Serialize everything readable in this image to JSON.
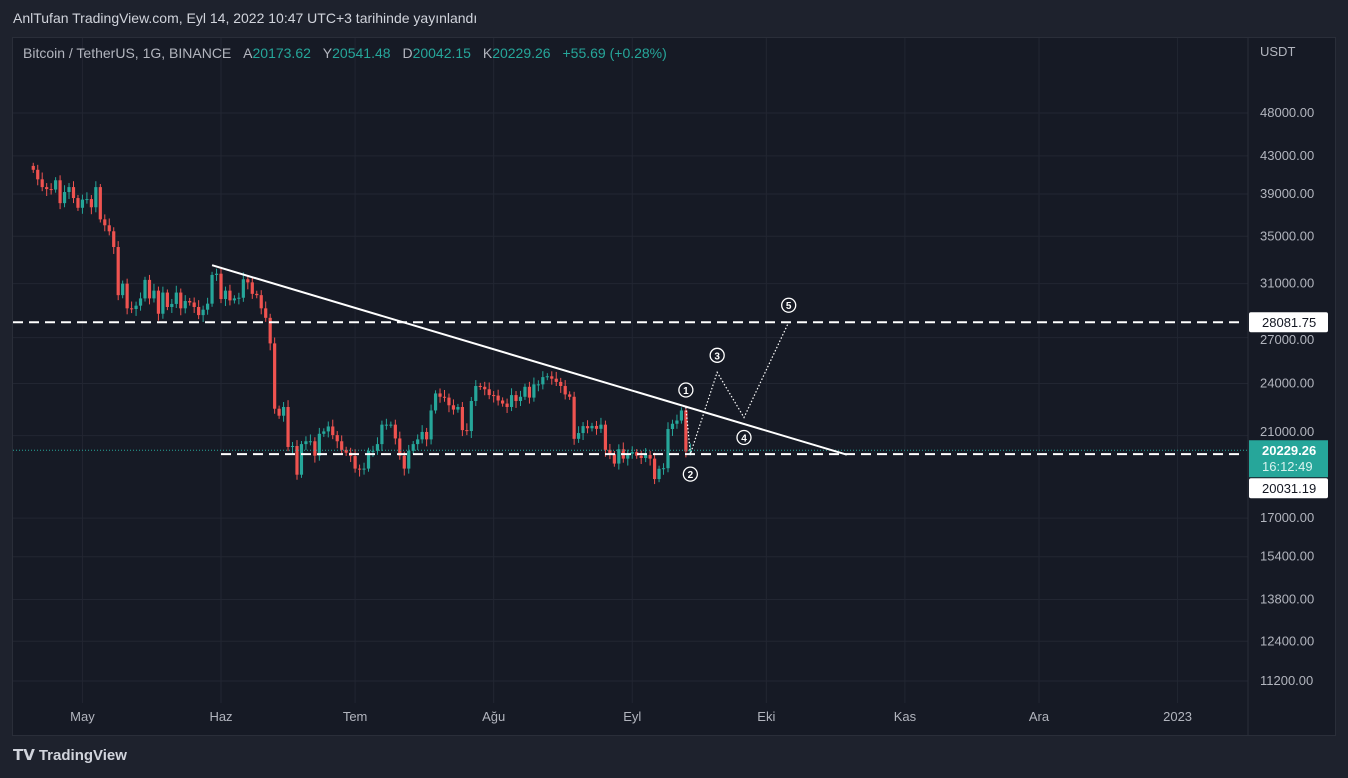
{
  "header": {
    "title": "AnlTufan TradingView.com, Eyl 14, 2022 10:47 UTC+3 tarihinde yayınlandı"
  },
  "legend": {
    "symbol": "Bitcoin / TetherUS, 1G, BINANCE",
    "open_label": "A",
    "open": "20173.62",
    "high_label": "Y",
    "high": "20541.48",
    "low_label": "D",
    "low": "20042.15",
    "close_label": "K",
    "close": "20229.26",
    "change": "+55.69 (+0.28%)"
  },
  "footer": {
    "brand": "TradingView"
  },
  "colors": {
    "up": "#26a69a",
    "down": "#ef5350",
    "bg": "#161a25"
  },
  "chart_data": {
    "type": "candlestick",
    "title": "Bitcoin / TetherUS, 1G, BINANCE",
    "currency": "USDT",
    "scale": "log",
    "start_date": "2022-04-20",
    "closes": [
      41500,
      40500,
      39700,
      39500,
      39450,
      40400,
      38100,
      39200,
      39700,
      38600,
      37650,
      38450,
      38500,
      37700,
      39700,
      36550,
      36000,
      35450,
      34050,
      30100,
      31000,
      29100,
      29050,
      29300,
      29850,
      31300,
      29850,
      30450,
      28700,
      30300,
      29200,
      29430,
      30300,
      29100,
      29650,
      29540,
      29200,
      28600,
      29000,
      29450,
      31700,
      31800,
      29800,
      30450,
      29700,
      29850,
      29900,
      31350,
      31100,
      30200,
      30100,
      29100,
      28400,
      26600,
      22500,
      22100,
      22600,
      20400,
      20450,
      19000,
      20550,
      20700,
      20700,
      19950,
      21100,
      21230,
      21500,
      21030,
      20700,
      20250,
      20100,
      19930,
      19300,
      19250,
      19300,
      20200,
      20200,
      20550,
      21600,
      21600,
      21600,
      20850,
      19950,
      19300,
      20200,
      20550,
      20800,
      21200,
      20800,
      22400,
      23400,
      23200,
      23150,
      22700,
      22450,
      22600,
      21300,
      21250,
      22950,
      23850,
      23800,
      23650,
      23300,
      23270,
      22980,
      22800,
      22600,
      23300,
      22950,
      23200,
      23800,
      23150,
      23950,
      23950,
      24400,
      24450,
      24300,
      24100,
      23850,
      23340,
      23200,
      20830,
      21140,
      21520,
      21400,
      21530,
      21370,
      21600,
      20250,
      20030,
      19550,
      20280,
      19800,
      20050,
      20130,
      19950,
      19830,
      19990,
      19800,
      18790,
      19290,
      19320,
      21360,
      21650,
      21830,
      22400,
      20170,
      20229.26
    ],
    "price_ticks": [
      "48000.00",
      "43000.00",
      "39000.00",
      "35000.00",
      "31000.00",
      "27000.00",
      "24000.00",
      "21000.00",
      "17000.00",
      "15400.00",
      "13800.00",
      "12400.00",
      "11200.00"
    ],
    "time_ticks": [
      {
        "label": "May",
        "date": "2022-05-01"
      },
      {
        "label": "Haz",
        "date": "2022-06-01"
      },
      {
        "label": "Tem",
        "date": "2022-07-01"
      },
      {
        "label": "Ağu",
        "date": "2022-08-01"
      },
      {
        "label": "Eyl",
        "date": "2022-09-01"
      },
      {
        "label": "Eki",
        "date": "2022-10-01"
      },
      {
        "label": "Kas",
        "date": "2022-11-01"
      },
      {
        "label": "Ara",
        "date": "2022-12-01"
      },
      {
        "label": "2023",
        "date": "2023-01-01"
      }
    ],
    "trendline": {
      "from": {
        "date": "2022-05-30",
        "price": 32500
      },
      "to": {
        "date": "2022-10-19",
        "price": 20000
      }
    },
    "levels": [
      {
        "price": 28081.75,
        "label": "28081.75"
      },
      {
        "price": 20031.19,
        "label": "20031.19"
      }
    ],
    "last_price": {
      "label": "20229.26",
      "countdown": "16:12:49",
      "price": 20229.26
    },
    "wave_path": [
      {
        "date": "2022-09-13",
        "price": 22600,
        "label": "1",
        "pos": "above"
      },
      {
        "date": "2022-09-14",
        "price": 20030,
        "label": "2",
        "pos": "below"
      },
      {
        "date": "2022-09-20",
        "price": 24700,
        "label": "3",
        "pos": "above"
      },
      {
        "date": "2022-09-26",
        "price": 22000,
        "label": "4",
        "pos": "below"
      },
      {
        "date": "2022-10-06",
        "price": 28081.75,
        "label": "5",
        "pos": "above"
      }
    ]
  }
}
